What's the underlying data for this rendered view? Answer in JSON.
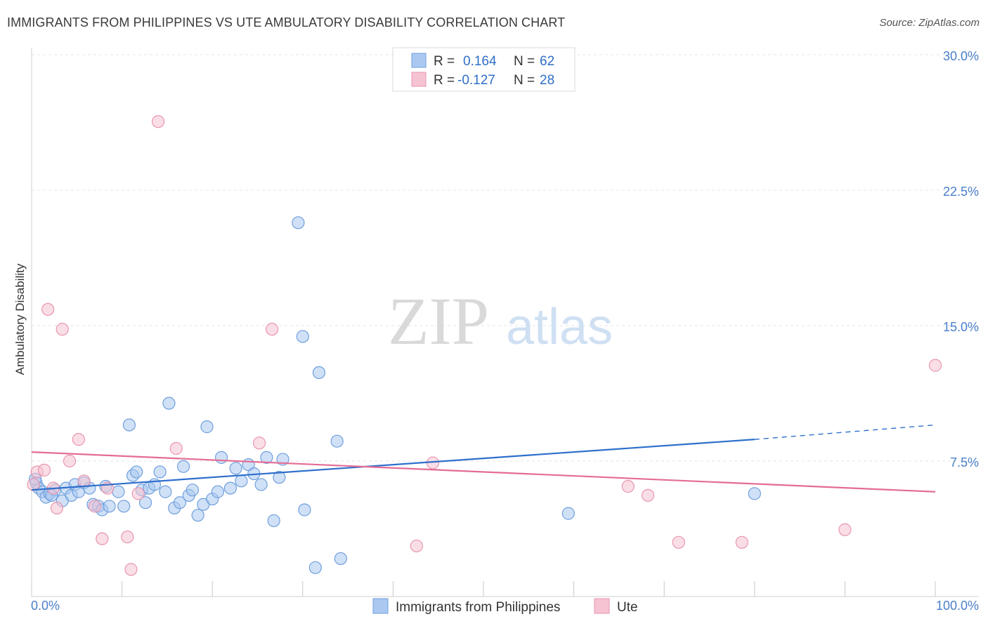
{
  "header": {
    "title": "IMMIGRANTS FROM PHILIPPINES VS UTE AMBULATORY DISABILITY CORRELATION CHART",
    "source": "Source: ZipAtlas.com"
  },
  "watermark": {
    "zip": "ZIP",
    "atlas": "atlas"
  },
  "legend": {
    "rows": [
      {
        "r_label": "R =",
        "r_value": "0.164",
        "n_label": "N =",
        "n_value": "62",
        "color": "#aac8f0"
      },
      {
        "r_label": "R =",
        "r_value": "-0.127",
        "n_label": "N =",
        "n_value": "28",
        "color": "#f6b8ca"
      }
    ]
  },
  "colors": {
    "blue_fill": "#aac8f0",
    "blue_stroke": "#6f9fdc",
    "blue_line": "#2e6fcc",
    "pink_fill": "#f6c3d2",
    "pink_stroke": "#e896b0",
    "pink_line": "#e46c95",
    "grid": "#e4e4e4",
    "axis_text": "#4a7fcb"
  },
  "chart_data": {
    "type": "scatter",
    "title": "IMMIGRANTS FROM PHILIPPINES VS UTE AMBULATORY DISABILITY CORRELATION CHART",
    "xlabel": "",
    "ylabel": "Ambulatory Disability",
    "xlim": [
      0,
      100
    ],
    "ylim": [
      0,
      30
    ],
    "x_tick_labels": [
      {
        "value": 0,
        "label": "0.0%"
      },
      {
        "value": 100,
        "label": "100.0%"
      }
    ],
    "y_tick_labels": [
      {
        "value": 7.5,
        "label": "7.5%"
      },
      {
        "value": 15.0,
        "label": "15.0%"
      },
      {
        "value": 22.5,
        "label": "22.5%"
      },
      {
        "value": 30.0,
        "label": "30.0%"
      }
    ],
    "grid": true,
    "legend_position": "top-center",
    "series": [
      {
        "name": "Immigrants from Philippines",
        "color": "#aac8f0",
        "trend": {
          "x0": 0,
          "y0": 5.9,
          "x1": 80,
          "y1": 8.7,
          "dashed_to_x": 100,
          "dashed_to_y": 9.5
        },
        "points": [
          [
            0.5,
            6.3
          ],
          [
            0.8,
            6.0
          ],
          [
            1.2,
            5.8
          ],
          [
            1.6,
            5.5
          ],
          [
            2.0,
            5.7
          ],
          [
            2.6,
            5.9
          ],
          [
            3.4,
            5.3
          ],
          [
            3.8,
            6.0
          ],
          [
            4.4,
            5.6
          ],
          [
            4.8,
            6.2
          ],
          [
            5.2,
            5.8
          ],
          [
            5.8,
            6.3
          ],
          [
            6.4,
            6.0
          ],
          [
            6.8,
            5.1
          ],
          [
            7.4,
            5.0
          ],
          [
            7.8,
            4.8
          ],
          [
            8.2,
            6.1
          ],
          [
            8.6,
            5.0
          ],
          [
            9.6,
            5.8
          ],
          [
            10.2,
            5.0
          ],
          [
            10.8,
            9.5
          ],
          [
            11.2,
            6.7
          ],
          [
            11.6,
            6.9
          ],
          [
            12.2,
            5.9
          ],
          [
            12.6,
            5.2
          ],
          [
            13.0,
            6.0
          ],
          [
            13.6,
            6.2
          ],
          [
            14.2,
            6.9
          ],
          [
            14.8,
            5.8
          ],
          [
            15.2,
            10.7
          ],
          [
            15.8,
            4.9
          ],
          [
            16.4,
            5.2
          ],
          [
            16.8,
            7.2
          ],
          [
            17.4,
            5.6
          ],
          [
            17.8,
            5.9
          ],
          [
            18.4,
            4.5
          ],
          [
            19.0,
            5.1
          ],
          [
            19.4,
            9.4
          ],
          [
            20.0,
            5.4
          ],
          [
            20.6,
            5.8
          ],
          [
            21.0,
            7.7
          ],
          [
            22.0,
            6.0
          ],
          [
            22.6,
            7.1
          ],
          [
            23.2,
            6.4
          ],
          [
            24.0,
            7.3
          ],
          [
            24.6,
            6.8
          ],
          [
            25.4,
            6.2
          ],
          [
            26.0,
            7.7
          ],
          [
            26.8,
            4.2
          ],
          [
            27.4,
            6.6
          ],
          [
            27.8,
            7.6
          ],
          [
            29.5,
            20.7
          ],
          [
            30.0,
            14.4
          ],
          [
            30.2,
            4.8
          ],
          [
            31.4,
            1.6
          ],
          [
            31.8,
            12.4
          ],
          [
            33.8,
            8.6
          ],
          [
            34.2,
            2.1
          ],
          [
            59.4,
            4.6
          ],
          [
            80.0,
            5.7
          ],
          [
            0.4,
            6.5
          ],
          [
            2.2,
            5.6
          ]
        ]
      },
      {
        "name": "Ute",
        "color": "#f6b8ca",
        "trend": {
          "x0": 0,
          "y0": 8.0,
          "x1": 100,
          "y1": 5.8
        },
        "points": [
          [
            0.6,
            6.9
          ],
          [
            1.4,
            7.0
          ],
          [
            1.8,
            15.9
          ],
          [
            2.4,
            6.0
          ],
          [
            2.8,
            4.9
          ],
          [
            3.4,
            14.8
          ],
          [
            4.2,
            7.5
          ],
          [
            5.2,
            8.7
          ],
          [
            5.8,
            6.4
          ],
          [
            7.0,
            5.0
          ],
          [
            7.8,
            3.2
          ],
          [
            8.4,
            6.0
          ],
          [
            10.6,
            3.3
          ],
          [
            11.0,
            1.5
          ],
          [
            11.8,
            5.7
          ],
          [
            14.0,
            26.3
          ],
          [
            16.0,
            8.2
          ],
          [
            25.2,
            8.5
          ],
          [
            26.6,
            14.8
          ],
          [
            42.6,
            2.8
          ],
          [
            44.4,
            7.4
          ],
          [
            66.0,
            6.1
          ],
          [
            68.2,
            5.6
          ],
          [
            71.6,
            3.0
          ],
          [
            78.6,
            3.0
          ],
          [
            90.0,
            3.7
          ],
          [
            100.0,
            12.8
          ],
          [
            0.2,
            6.2
          ]
        ]
      }
    ]
  }
}
